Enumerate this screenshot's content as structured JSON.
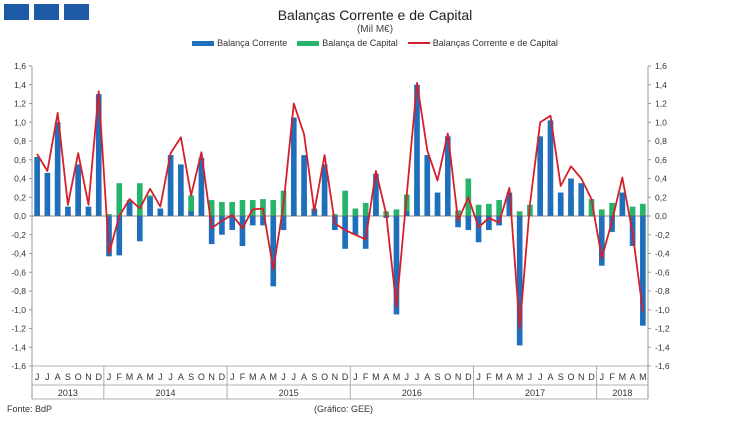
{
  "colors": {
    "current": "#1f6fbd",
    "capital": "#26b36a",
    "line": "#d4202a",
    "logo": "#1c5aa6"
  },
  "footer": {
    "source": "Fonte: BdP",
    "note": "(Gráfico: GEE)"
  },
  "chart_data": {
    "type": "bar",
    "title": "Balanças Corrente e de Capital",
    "subtitle": "(Mil M€)",
    "xlabel": "",
    "ylabel": "",
    "ylim": [
      -1.6,
      1.6
    ],
    "yticks": [
      "1,6",
      "1,4",
      "1,2",
      "1,0",
      "0,8",
      "0,6",
      "0,4",
      "0,2",
      "0,0",
      "-0,2",
      "-0,4",
      "-0,6",
      "-0,8",
      "-1,0",
      "-1,2",
      "-1,4",
      "-1,6"
    ],
    "legend": [
      "Balança Corrente",
      "Balança de Capital",
      "Balanças Corrente e de Capital"
    ],
    "categories": [
      "J",
      "J",
      "A",
      "S",
      "O",
      "N",
      "D",
      "J",
      "F",
      "M",
      "A",
      "M",
      "J",
      "J",
      "A",
      "S",
      "O",
      "N",
      "D",
      "J",
      "F",
      "M",
      "A",
      "M",
      "J",
      "J",
      "A",
      "S",
      "O",
      "N",
      "D",
      "J",
      "F",
      "M",
      "A",
      "M",
      "J",
      "J",
      "A",
      "S",
      "O",
      "N",
      "D",
      "J",
      "F",
      "M",
      "A",
      "M",
      "J",
      "J",
      "A",
      "S",
      "O",
      "N",
      "D",
      "J",
      "F",
      "M",
      "A",
      "M"
    ],
    "years": [
      {
        "label": "2013",
        "months": 7
      },
      {
        "label": "2014",
        "months": 12
      },
      {
        "label": "2015",
        "months": 12
      },
      {
        "label": "2016",
        "months": 12
      },
      {
        "label": "2017",
        "months": 12
      },
      {
        "label": "2018",
        "months": 5
      }
    ],
    "series": [
      {
        "name": "Balança Corrente",
        "kind": "bar",
        "values": [
          0.63,
          0.46,
          1.0,
          0.1,
          0.55,
          0.1,
          1.3,
          -0.43,
          -0.42,
          0.15,
          -0.27,
          0.2,
          0.08,
          0.65,
          0.55,
          0.05,
          0.62,
          -0.3,
          -0.2,
          -0.15,
          -0.32,
          -0.1,
          -0.1,
          -0.75,
          -0.15,
          1.05,
          0.65,
          0.08,
          0.55,
          -0.15,
          -0.35,
          -0.2,
          -0.35,
          0.45,
          -0.02,
          -1.05,
          0.05,
          1.4,
          0.65,
          0.25,
          0.85,
          -0.12,
          -0.15,
          -0.28,
          -0.15,
          -0.1,
          0.25,
          -1.38,
          0.0,
          0.85,
          1.02,
          0.25,
          0.4,
          0.35,
          0.0,
          -0.53,
          -0.17,
          0.25,
          -0.32,
          -1.17
        ]
      },
      {
        "name": "Balança de Capital",
        "kind": "bar",
        "values": [
          0.02,
          0.02,
          0.5,
          0.02,
          0.55,
          0.02,
          0.02,
          0.02,
          0.35,
          0.17,
          0.35,
          0.22,
          0.05,
          0.3,
          0.25,
          0.22,
          0.15,
          0.17,
          0.15,
          0.15,
          0.17,
          0.17,
          0.18,
          0.17,
          0.27,
          0.2,
          0.2,
          0.06,
          0.15,
          0.02,
          0.27,
          0.08,
          0.14,
          0.15,
          0.05,
          0.07,
          0.23,
          0.3,
          0.15,
          0.12,
          0.05,
          0.06,
          0.4,
          0.12,
          0.13,
          0.17,
          0.2,
          0.05,
          0.12,
          0.18,
          0.12,
          0.2,
          0.2,
          0.2,
          0.18,
          0.07,
          0.14,
          0.14,
          0.1,
          0.13
        ]
      },
      {
        "name": "Balanças Corrente e de Capital",
        "kind": "line",
        "values": [
          0.66,
          0.48,
          1.1,
          0.12,
          0.67,
          0.12,
          1.33,
          -0.4,
          0.0,
          0.18,
          0.08,
          0.29,
          0.1,
          0.67,
          0.84,
          0.22,
          0.68,
          -0.13,
          -0.05,
          0.01,
          -0.13,
          0.07,
          0.08,
          -0.57,
          0.12,
          1.2,
          0.87,
          0.05,
          0.65,
          -0.08,
          -0.15,
          -0.2,
          -0.25,
          0.48,
          0.02,
          -0.97,
          0.22,
          1.42,
          0.7,
          0.38,
          0.88,
          -0.05,
          0.2,
          -0.12,
          -0.02,
          -0.07,
          0.3,
          -1.2,
          0.12,
          1.0,
          1.07,
          0.32,
          0.53,
          0.4,
          0.18,
          -0.45,
          -0.05,
          0.41,
          -0.18,
          -1.02
        ]
      }
    ]
  }
}
